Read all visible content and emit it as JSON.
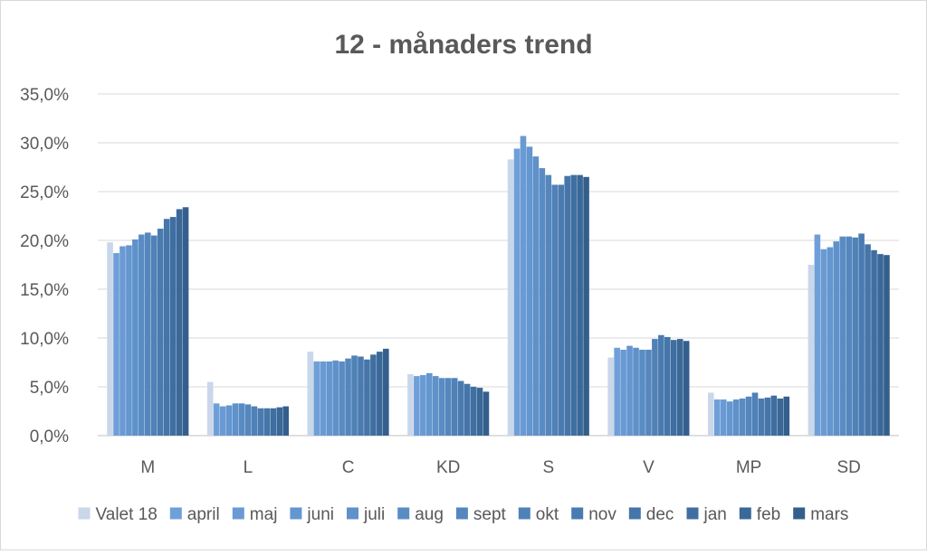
{
  "chart_data": {
    "type": "bar",
    "title": "12 - månaders trend",
    "xlabel": "",
    "ylabel": "",
    "ylim": [
      0,
      35
    ],
    "y_tick_labels": [
      "0,0%",
      "5,0%",
      "10,0%",
      "15,0%",
      "20,0%",
      "25,0%",
      "30,0%",
      "35,0%"
    ],
    "grid": true,
    "legend_position": "bottom",
    "categories": [
      "M",
      "L",
      "C",
      "KD",
      "S",
      "V",
      "MP",
      "SD"
    ],
    "series": [
      {
        "name": "Valet 18",
        "color": "#c9d7ea",
        "values": [
          19.8,
          5.5,
          8.6,
          6.3,
          28.3,
          8.0,
          4.4,
          17.5
        ]
      },
      {
        "name": "april",
        "color": "#6f9fd8",
        "values": [
          18.7,
          3.3,
          7.6,
          6.1,
          29.4,
          9.0,
          3.7,
          20.6
        ]
      },
      {
        "name": "maj",
        "color": "#6a9ad4",
        "values": [
          19.4,
          3.0,
          7.6,
          6.2,
          30.7,
          8.8,
          3.7,
          19.1
        ]
      },
      {
        "name": "juni",
        "color": "#6496cf",
        "values": [
          19.5,
          3.1,
          7.6,
          6.4,
          29.6,
          9.2,
          3.5,
          19.3
        ]
      },
      {
        "name": "juli",
        "color": "#5f91ca",
        "values": [
          20.1,
          3.3,
          7.7,
          6.1,
          28.6,
          9.0,
          3.7,
          19.9
        ]
      },
      {
        "name": "aug",
        "color": "#5a8cc4",
        "values": [
          20.6,
          3.3,
          7.6,
          5.9,
          27.4,
          8.8,
          3.8,
          20.4
        ]
      },
      {
        "name": "sept",
        "color": "#5587be",
        "values": [
          20.8,
          3.2,
          7.9,
          5.9,
          26.7,
          8.8,
          4.0,
          20.4
        ]
      },
      {
        "name": "okt",
        "color": "#5081b7",
        "values": [
          20.5,
          3.0,
          8.2,
          5.9,
          25.7,
          9.9,
          4.4,
          20.3
        ]
      },
      {
        "name": "nov",
        "color": "#4a7bb0",
        "values": [
          21.2,
          2.8,
          8.1,
          5.6,
          25.7,
          10.3,
          3.8,
          20.7
        ]
      },
      {
        "name": "dec",
        "color": "#4575a9",
        "values": [
          22.2,
          2.8,
          7.8,
          5.3,
          26.6,
          10.1,
          3.9,
          19.6
        ]
      },
      {
        "name": "jan",
        "color": "#3f6ea1",
        "values": [
          22.4,
          2.8,
          8.3,
          5.0,
          26.7,
          9.8,
          4.1,
          19.0
        ]
      },
      {
        "name": "feb",
        "color": "#3a6898",
        "values": [
          23.2,
          2.9,
          8.6,
          4.9,
          26.7,
          9.9,
          3.8,
          18.6
        ]
      },
      {
        "name": "mars",
        "color": "#345f8d",
        "values": [
          23.4,
          3.0,
          8.9,
          4.5,
          26.5,
          9.7,
          4.0,
          18.5
        ]
      }
    ]
  }
}
